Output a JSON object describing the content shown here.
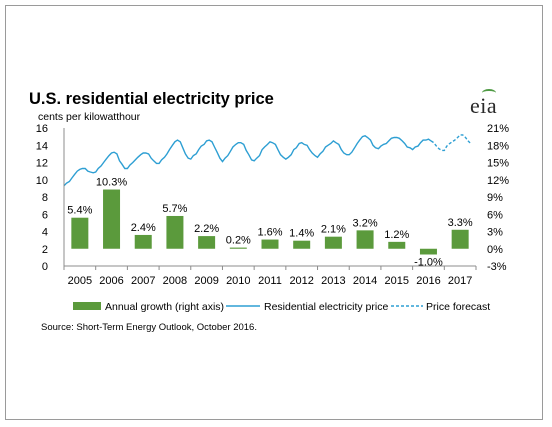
{
  "chart_data": {
    "type": "bar+line",
    "title": "U.S. residential electricity price",
    "subtitle": "cents per kilowatthour",
    "source": "Source: Short-Term Energy Outlook, October 2016.",
    "logo": "eia",
    "years": [
      "2005",
      "2006",
      "2007",
      "2008",
      "2009",
      "2010",
      "2011",
      "2012",
      "2013",
      "2014",
      "2015",
      "2016",
      "2017"
    ],
    "left_axis": {
      "ticks": [
        "0",
        "2",
        "4",
        "6",
        "8",
        "10",
        "12",
        "14",
        "16"
      ],
      "ylim": [
        0,
        16
      ]
    },
    "right_axis": {
      "ticks": [
        "-3%",
        "0%",
        "3%",
        "6%",
        "9%",
        "12%",
        "15%",
        "18%",
        "21%"
      ],
      "ylim": [
        -3,
        21
      ]
    },
    "series": [
      {
        "name": "Annual growth (right axis)",
        "type": "bar",
        "axis": "right",
        "color": "#5b9a3c",
        "values": [
          5.4,
          10.3,
          2.4,
          5.7,
          2.2,
          0.2,
          1.6,
          1.4,
          2.1,
          3.2,
          1.2,
          -1.0,
          3.3
        ],
        "labels": [
          "5.4%",
          "10.3%",
          "2.4%",
          "5.7%",
          "2.2%",
          "0.2%",
          "1.6%",
          "1.4%",
          "2.1%",
          "3.2%",
          "1.2%",
          "-1.0%",
          "3.3%"
        ]
      },
      {
        "name": "Residential electricity price",
        "type": "line",
        "axis": "left",
        "color": "#2e9fd3",
        "x": [
          2005.0,
          2005.08,
          2005.17,
          2005.25,
          2005.33,
          2005.42,
          2005.5,
          2005.58,
          2005.67,
          2005.75,
          2005.83,
          2005.92,
          2006.0,
          2006.08,
          2006.17,
          2006.25,
          2006.33,
          2006.42,
          2006.5,
          2006.58,
          2006.67,
          2006.75,
          2006.83,
          2006.92,
          2007.0,
          2007.08,
          2007.17,
          2007.25,
          2007.33,
          2007.42,
          2007.5,
          2007.58,
          2007.67,
          2007.75,
          2007.83,
          2007.92,
          2008.0,
          2008.08,
          2008.17,
          2008.25,
          2008.33,
          2008.42,
          2008.5,
          2008.58,
          2008.67,
          2008.75,
          2008.83,
          2008.92,
          2009.0,
          2009.08,
          2009.17,
          2009.25,
          2009.33,
          2009.42,
          2009.5,
          2009.58,
          2009.67,
          2009.75,
          2009.83,
          2009.92,
          2010.0,
          2010.08,
          2010.17,
          2010.25,
          2010.33,
          2010.42,
          2010.5,
          2010.58,
          2010.67,
          2010.75,
          2010.83,
          2010.92,
          2011.0,
          2011.08,
          2011.17,
          2011.25,
          2011.33,
          2011.42,
          2011.5,
          2011.58,
          2011.67,
          2011.75,
          2011.83,
          2011.92,
          2012.0,
          2012.08,
          2012.17,
          2012.25,
          2012.33,
          2012.42,
          2012.5,
          2012.58,
          2012.67,
          2012.75,
          2012.83,
          2012.92,
          2013.0,
          2013.08,
          2013.17,
          2013.25,
          2013.33,
          2013.42,
          2013.5,
          2013.58,
          2013.67,
          2013.75,
          2013.83,
          2013.92,
          2014.0,
          2014.08,
          2014.17,
          2014.25,
          2014.33,
          2014.42,
          2014.5,
          2014.58,
          2014.67,
          2014.75,
          2014.83,
          2014.92,
          2015.0,
          2015.08,
          2015.17,
          2015.25,
          2015.33,
          2015.42,
          2015.5,
          2015.58,
          2015.67,
          2015.75,
          2015.83,
          2015.92,
          2016.0,
          2016.08,
          2016.17,
          2016.25,
          2016.33,
          2016.42,
          2016.5,
          2016.58
        ],
        "values": [
          9.3,
          9.6,
          9.8,
          10.2,
          10.6,
          11.0,
          11.2,
          11.3,
          11.3,
          11.0,
          10.9,
          10.8,
          10.9,
          11.3,
          11.6,
          12.0,
          12.4,
          12.8,
          13.1,
          13.2,
          13.0,
          12.2,
          11.8,
          11.3,
          11.3,
          11.7,
          12.0,
          12.3,
          12.6,
          12.9,
          13.1,
          13.1,
          13.0,
          12.5,
          12.2,
          11.9,
          11.9,
          12.3,
          12.6,
          13.0,
          13.5,
          14.0,
          14.4,
          14.6,
          14.4,
          13.7,
          13.0,
          12.5,
          12.4,
          12.8,
          13.0,
          13.5,
          13.9,
          14.1,
          14.5,
          14.6,
          14.4,
          13.8,
          13.2,
          12.5,
          12.1,
          12.5,
          12.8,
          13.3,
          13.8,
          14.1,
          14.3,
          14.3,
          14.1,
          13.4,
          12.9,
          12.3,
          12.2,
          12.5,
          12.8,
          13.5,
          13.8,
          14.1,
          14.4,
          14.3,
          14.1,
          13.5,
          12.9,
          12.6,
          12.4,
          12.6,
          12.9,
          13.5,
          13.7,
          14.2,
          14.3,
          14.1,
          14.0,
          13.5,
          13.1,
          12.8,
          12.6,
          13.0,
          13.3,
          13.8,
          14.0,
          14.2,
          14.5,
          14.3,
          14.1,
          13.5,
          13.1,
          12.9,
          12.9,
          13.2,
          13.7,
          14.2,
          14.6,
          15.0,
          15.1,
          14.9,
          14.6,
          14.0,
          13.7,
          13.6,
          13.9,
          14.1,
          14.2,
          14.5,
          14.8,
          14.9,
          14.9,
          14.8,
          14.5,
          14.2,
          13.8,
          13.7,
          13.5,
          13.8,
          13.9,
          14.3,
          14.6,
          14.6,
          14.7,
          14.5
        ]
      },
      {
        "name": "Price forecast",
        "type": "line",
        "style": "dashed",
        "axis": "left",
        "color": "#2e9fd3",
        "x": [
          2016.58,
          2016.67,
          2016.75,
          2016.83,
          2016.92,
          2017.0,
          2017.08,
          2017.17,
          2017.25,
          2017.33,
          2017.42,
          2017.5,
          2017.58,
          2017.67,
          2017.75,
          2017.83
        ],
        "values": [
          14.5,
          14.3,
          13.9,
          13.6,
          13.4,
          13.4,
          13.9,
          14.2,
          14.4,
          14.6,
          14.9,
          15.2,
          15.2,
          14.9,
          14.5,
          14.2
        ]
      }
    ],
    "grid": false,
    "legend_position": "bottom"
  }
}
